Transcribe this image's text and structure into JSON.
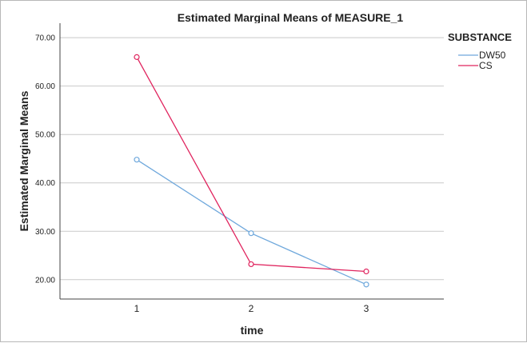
{
  "chart_data": {
    "type": "line",
    "title": "Estimated Marginal Means of MEASURE_1",
    "xlabel": "time",
    "ylabel": "Estimated Marginal Means",
    "categories": [
      "1",
      "2",
      "3"
    ],
    "ylim": [
      16,
      73
    ],
    "yticks": [
      20,
      30,
      40,
      50,
      60,
      70
    ],
    "ytick_labels": [
      "20.00",
      "30.00",
      "40.00",
      "50.00",
      "60.00",
      "70.00"
    ],
    "grid": true,
    "legend_title": "SUBSTANCE",
    "legend_position": "top-right, outside plot",
    "series": [
      {
        "name": "DW50",
        "color": "#6fa8dc",
        "values": [
          44.8,
          29.6,
          19.0
        ]
      },
      {
        "name": "CS",
        "color": "#e0245e",
        "values": [
          66.0,
          23.2,
          21.7
        ]
      }
    ]
  }
}
